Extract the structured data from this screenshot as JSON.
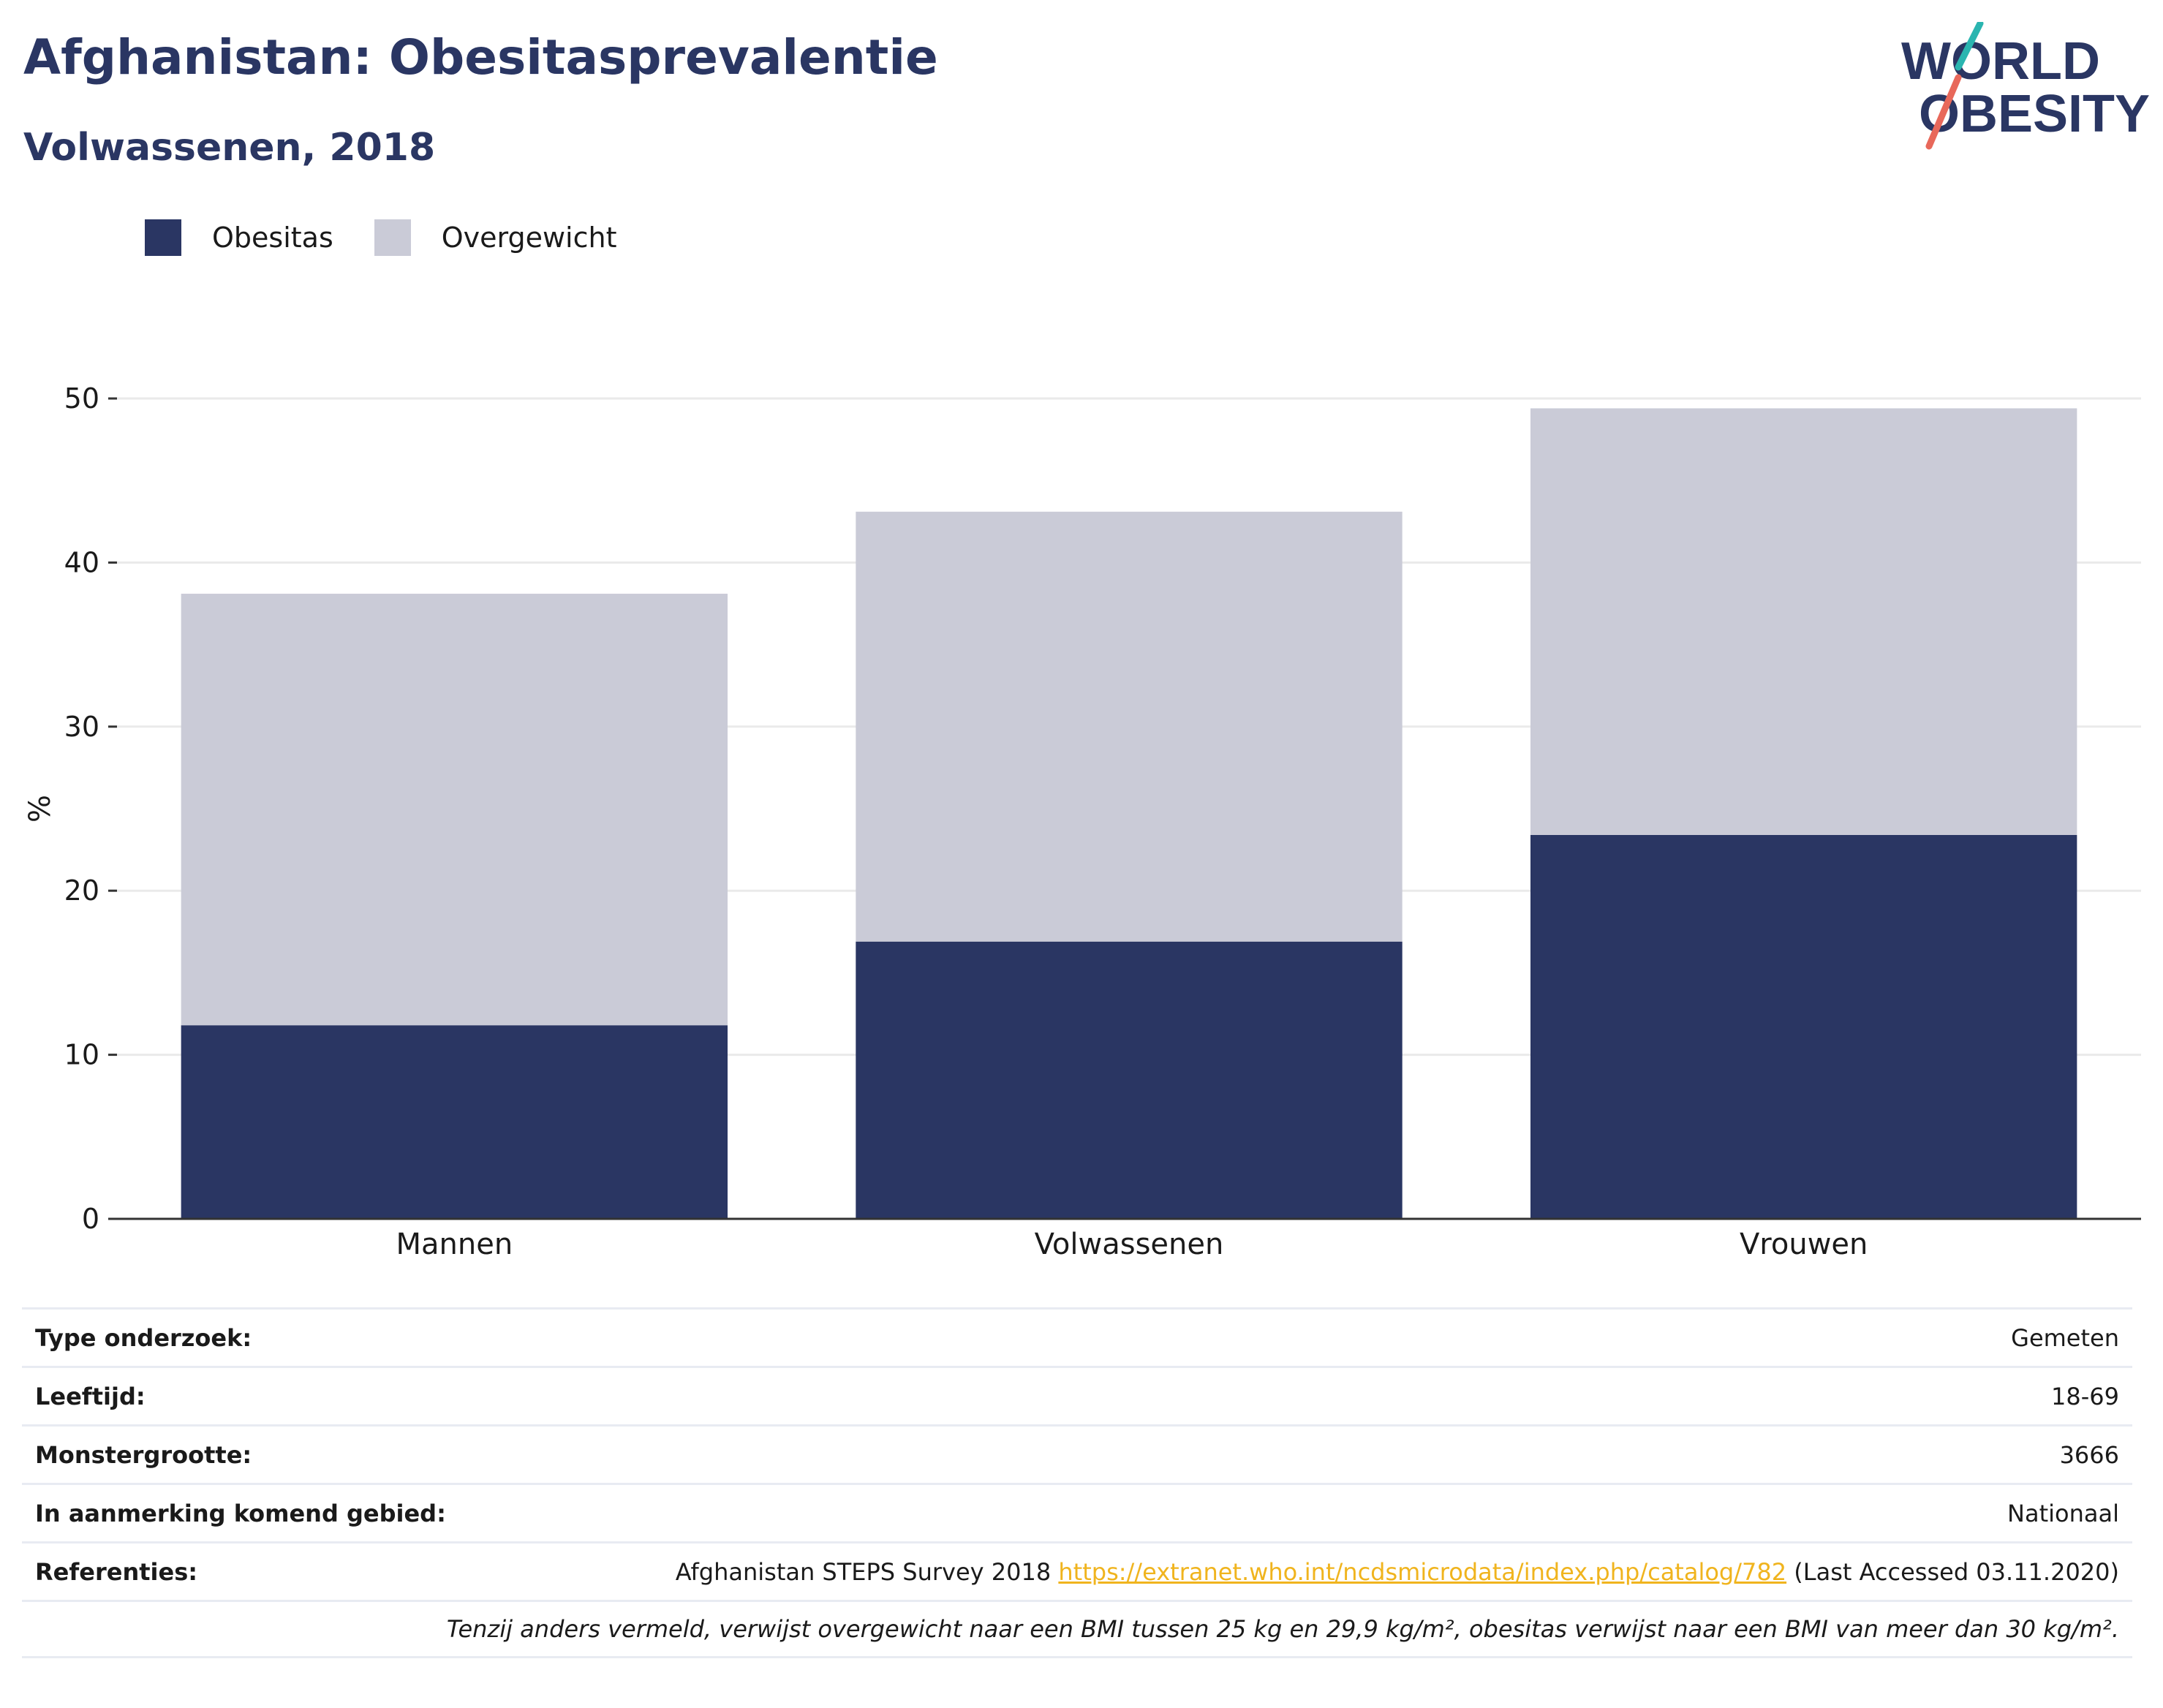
{
  "header": {
    "title": "Afghanistan: Obesitasprevalentie",
    "subtitle": "Volwassenen, 2018"
  },
  "logo": {
    "line1": "WORLD",
    "line2": "OBESITY"
  },
  "colors": {
    "obesity": "#2a3663",
    "overweight": "#cacbd7",
    "accent_teal": "#2ab5b0",
    "accent_red": "#e8685a",
    "link": "#f0b41e",
    "grid": "#eaeaea",
    "axis": "#333333"
  },
  "chart_data": {
    "type": "bar",
    "stacked": true,
    "categories": [
      "Mannen",
      "Volwassenen",
      "Vrouwen"
    ],
    "series": [
      {
        "name": "Obesitas",
        "values": [
          11.8,
          16.9,
          23.4
        ]
      },
      {
        "name": "Overgewicht",
        "values": [
          26.3,
          26.2,
          26.0
        ]
      }
    ],
    "ylabel": "%",
    "ylim": [
      0,
      50
    ],
    "yticks": [
      0,
      10,
      20,
      30,
      40,
      50
    ],
    "grid": true,
    "legend": "top-left"
  },
  "info": {
    "rows": [
      {
        "label": "Type onderzoek:",
        "value": "Gemeten"
      },
      {
        "label": "Leeftijd:",
        "value": "18-69"
      },
      {
        "label": "Monstergrootte:",
        "value": "3666"
      },
      {
        "label": "In aanmerking komend gebied:",
        "value": "Nationaal"
      }
    ],
    "references": {
      "label": "Referenties:",
      "text_before": "Afghanistan STEPS Survey 2018",
      "link": "https://extranet.who.int/ncdsmicrodata/index.php/catalog/782",
      "text_after": "(Last Accessed 03.11.2020)"
    },
    "note": "Tenzij anders vermeld, verwijst overgewicht naar een BMI tussen 25 kg en 29,9 kg/m², obesitas verwijst naar een BMI van meer dan 30 kg/m²."
  }
}
